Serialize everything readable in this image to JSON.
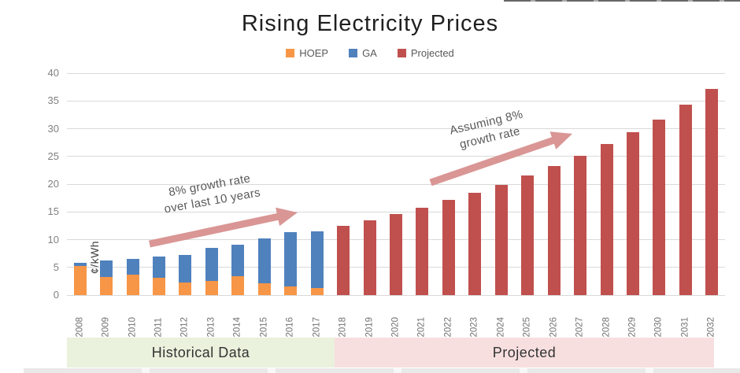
{
  "title": "Rising Electricity Prices",
  "chart_data": {
    "type": "bar",
    "stacked": true,
    "title": "Rising Electricity Prices",
    "xlabel": "",
    "ylabel": "¢/kWh",
    "ylim": [
      0,
      40
    ],
    "ytick_step": 5,
    "grid": "horizontal",
    "legend_position": "top",
    "categories": [
      "2008",
      "2009",
      "2010",
      "2011",
      "2012",
      "2013",
      "2014",
      "2015",
      "2016",
      "2017",
      "2018",
      "2019",
      "2020",
      "2021",
      "2022",
      "2023",
      "2024",
      "2025",
      "2026",
      "2027",
      "2028",
      "2029",
      "2030",
      "2031",
      "2032"
    ],
    "series": [
      {
        "name": "HOEP",
        "color": "#F79646",
        "values": [
          5.2,
          3.2,
          3.7,
          3.1,
          2.3,
          2.5,
          3.4,
          2.2,
          1.6,
          1.3,
          null,
          null,
          null,
          null,
          null,
          null,
          null,
          null,
          null,
          null,
          null,
          null,
          null,
          null,
          null
        ]
      },
      {
        "name": "GA",
        "color": "#4F81BD",
        "values": [
          0.6,
          3.1,
          2.8,
          3.9,
          5.0,
          6.0,
          5.7,
          8.0,
          9.7,
          10.2,
          null,
          null,
          null,
          null,
          null,
          null,
          null,
          null,
          null,
          null,
          null,
          null,
          null,
          null,
          null
        ]
      },
      {
        "name": "Projected",
        "color": "#C0504D",
        "values": [
          null,
          null,
          null,
          null,
          null,
          null,
          null,
          null,
          null,
          null,
          12.5,
          13.5,
          14.6,
          15.8,
          17.1,
          18.4,
          19.9,
          21.5,
          23.2,
          25.1,
          27.2,
          29.4,
          31.7,
          34.3,
          37.2
        ]
      }
    ],
    "annotations": [
      {
        "text": [
          "8% growth rate",
          "over last 10 years"
        ],
        "target": "historical"
      },
      {
        "text": [
          "Assuming 8%",
          "growth rate"
        ],
        "target": "projected"
      }
    ]
  },
  "footer_bands": [
    {
      "label": "Historical Data",
      "color": "#EAF1DC"
    },
    {
      "label": "Projected",
      "color": "#F7DFE0"
    }
  ],
  "colors": {
    "arrow": "#D99694",
    "gridline": "#D9D9D9",
    "y_tick_text": "#808080",
    "x_tick_text": "#737373",
    "annotation_text": "#595959",
    "title_text": "#1F1F1F"
  }
}
